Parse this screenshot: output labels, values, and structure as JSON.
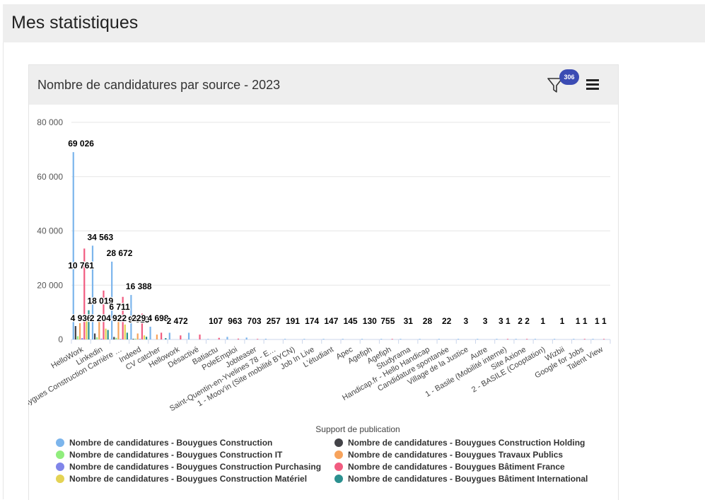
{
  "page": {
    "title": "Mes statistiques"
  },
  "card": {
    "title": "Nombre de candidatures par source - 2023",
    "filter_badge": "306"
  },
  "icons": {
    "filter": "filter-icon",
    "menu": "hamburger-menu-icon"
  },
  "chart_data": {
    "type": "bar",
    "title": "Nombre de candidatures par source - 2023",
    "xlabel": "Support de publication",
    "ylabel": "",
    "ylim": [
      0,
      80000
    ],
    "yticks": [
      0,
      20000,
      40000,
      60000,
      80000
    ],
    "ytick_labels": [
      "0",
      "20 000",
      "40 000",
      "60 000",
      "80 000"
    ],
    "grid": true,
    "legend_position": "bottom",
    "categories": [
      "HelloWork",
      "Linkedin",
      "Bouygues Construction Carrière …",
      "Indeed",
      "CV catcher",
      "Hellowork",
      "Désactivé",
      "Batiactu",
      "PoleEmploi",
      "Jobteaser",
      "Saint-Quentin-en-Yvelines 78 - E…",
      "1 - Moov'in (Site mobilité BYCN)",
      "Job In Live",
      "L'étudiant",
      "Apec",
      "Agefiph",
      "Agefiph",
      "Studyrama",
      "Handicap.fr - Hello Handicap",
      "Candidature spontanée",
      "Village de la Justice",
      "Autre",
      "1 - Basile (Mobilité interne)",
      "Site Axione",
      "2 - BASILE (Cooptation)",
      "Wizbii",
      "Google for Jobs",
      "Talent View"
    ],
    "series": [
      {
        "name": "Nombre de candidatures - Bouygues Construction",
        "color": "#7cb5ec",
        "values": [
          69026,
          34563,
          28672,
          16388,
          4698,
          2472,
          2472,
          107,
          963,
          703,
          257,
          191,
          174,
          147,
          145,
          130,
          75,
          31,
          28,
          22,
          3,
          3,
          3,
          2,
          1,
          1,
          1,
          1
        ]
      },
      {
        "name": "Nombre de candidatures - Bouygues Construction Holding",
        "color": "#434348",
        "values": [
          4936,
          2204,
          922,
          229,
          0,
          0,
          0,
          0,
          0,
          0,
          0,
          0,
          0,
          0,
          0,
          0,
          0,
          0,
          0,
          0,
          0,
          0,
          0,
          0,
          0,
          0,
          0,
          0
        ]
      },
      {
        "name": "Nombre de candidatures - Bouygues Construction IT",
        "color": "#90ed7d",
        "values": [
          1200,
          800,
          600,
          300,
          0,
          0,
          0,
          0,
          0,
          0,
          0,
          0,
          0,
          0,
          0,
          0,
          0,
          0,
          0,
          0,
          0,
          0,
          0,
          0,
          0,
          0,
          0,
          0
        ]
      },
      {
        "name": "Nombre de candidatures - Bouygues Travaux Publics",
        "color": "#f7a35c",
        "values": [
          6000,
          9000,
          6711,
          2200,
          1800,
          0,
          0,
          0,
          0,
          0,
          0,
          0,
          0,
          0,
          0,
          0,
          0,
          0,
          0,
          0,
          0,
          0,
          0,
          0,
          0,
          0,
          0,
          0
        ]
      },
      {
        "name": "Nombre de candidatures - Bouygues Construction Purchasing",
        "color": "#8085e9",
        "values": [
          500,
          300,
          200,
          100,
          0,
          0,
          0,
          0,
          0,
          0,
          0,
          0,
          0,
          0,
          0,
          0,
          0,
          0,
          0,
          0,
          0,
          0,
          0,
          0,
          0,
          0,
          0,
          0
        ]
      },
      {
        "name": "Nombre de candidatures - Bouygues Bâtiment France",
        "color": "#f15c80",
        "values": [
          33500,
          18019,
          15700,
          9513,
          2500,
          1500,
          1800,
          600,
          300,
          200,
          0,
          0,
          0,
          0,
          0,
          0,
          5,
          0,
          0,
          0,
          0,
          0,
          1,
          2,
          0,
          0,
          1,
          1
        ]
      },
      {
        "name": "Nombre de candidatures - Bouygues Construction Matériel",
        "color": "#e4d354",
        "values": [
          8000,
          4000,
          5500,
          1500,
          0,
          0,
          0,
          0,
          0,
          0,
          0,
          0,
          0,
          0,
          0,
          0,
          0,
          0,
          0,
          0,
          0,
          0,
          0,
          0,
          0,
          0,
          0,
          0
        ]
      },
      {
        "name": "Nombre de candidatures - Bouygues Bâtiment International",
        "color": "#2b908f",
        "values": [
          10761,
          3500,
          2500,
          1000,
          500,
          0,
          0,
          0,
          0,
          0,
          0,
          0,
          0,
          0,
          0,
          0,
          0,
          0,
          0,
          0,
          0,
          0,
          0,
          0,
          0,
          0,
          0,
          0
        ]
      }
    ],
    "data_labels": [
      {
        "category_index": 0,
        "text": "69 026"
      },
      {
        "category_index": 0,
        "text": "10 761"
      },
      {
        "category_index": 0,
        "text": "4 936"
      },
      {
        "category_index": 1,
        "text": "34 563"
      },
      {
        "category_index": 1,
        "text": "18 019"
      },
      {
        "category_index": 1,
        "text": "2 204"
      },
      {
        "category_index": 2,
        "text": "28 672"
      },
      {
        "category_index": 2,
        "text": "6 711"
      },
      {
        "category_index": 2,
        "text": "922"
      },
      {
        "category_index": 3,
        "text": "16 388"
      },
      {
        "category_index": 3,
        "text": "9 513"
      },
      {
        "category_index": 3,
        "text": "229"
      },
      {
        "category_index": 4,
        "text": "4 698"
      },
      {
        "category_index": 5,
        "text": "2 472"
      },
      {
        "category_index": 7,
        "text": "107"
      },
      {
        "category_index": 8,
        "text": "963"
      },
      {
        "category_index": 9,
        "text": "703"
      },
      {
        "category_index": 10,
        "text": "257"
      },
      {
        "category_index": 11,
        "text": "191"
      },
      {
        "category_index": 12,
        "text": "174"
      },
      {
        "category_index": 13,
        "text": "147"
      },
      {
        "category_index": 14,
        "text": "145"
      },
      {
        "category_index": 15,
        "text": "130"
      },
      {
        "category_index": 16,
        "text": "75"
      },
      {
        "category_index": 16,
        "text": "5"
      },
      {
        "category_index": 17,
        "text": "31"
      },
      {
        "category_index": 18,
        "text": "28"
      },
      {
        "category_index": 19,
        "text": "22"
      },
      {
        "category_index": 20,
        "text": "3"
      },
      {
        "category_index": 21,
        "text": "3"
      },
      {
        "category_index": 22,
        "text": "3"
      },
      {
        "category_index": 22,
        "text": "1"
      },
      {
        "category_index": 23,
        "text": "2"
      },
      {
        "category_index": 23,
        "text": "2"
      },
      {
        "category_index": 24,
        "text": "1"
      },
      {
        "category_index": 25,
        "text": "1"
      },
      {
        "category_index": 26,
        "text": "1"
      },
      {
        "category_index": 26,
        "text": "1"
      },
      {
        "category_index": 27,
        "text": "1"
      },
      {
        "category_index": 27,
        "text": "1"
      }
    ]
  }
}
